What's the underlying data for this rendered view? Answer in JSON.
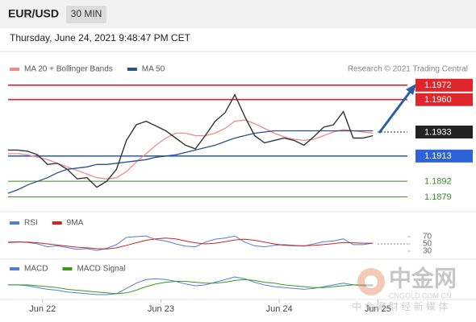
{
  "header": {
    "symbol": "EUR/USD",
    "timeframe": "30 MIN",
    "timestamp": "Thursday, June 24, 2021 9:48:47 PM CET"
  },
  "watermark": {
    "logo": "中金网",
    "url": "CNGOLD.COM.CN",
    "tagline": "中 金 网 财 经 新 媒 体"
  },
  "chart_data": [
    {
      "type": "line",
      "source": "Research © 2021 Trading Central",
      "x": [
        0,
        2,
        4,
        6,
        8,
        10,
        12,
        14,
        16,
        18,
        20,
        22,
        24,
        26,
        28,
        30,
        32,
        34,
        36,
        38,
        40,
        42,
        44,
        46,
        48,
        50,
        52,
        54,
        56,
        58,
        60,
        62,
        64,
        66,
        68,
        70,
        72,
        74
      ],
      "xlim": [
        0,
        81
      ],
      "xticks": [
        {
          "value": 7,
          "label": "Jun 22"
        },
        {
          "value": 31,
          "label": "Jun 23"
        },
        {
          "value": 55,
          "label": "Jun 24"
        },
        {
          "value": 75,
          "label": "Jun 25"
        }
      ],
      "ylim": [
        1.187,
        1.1996
      ],
      "color": "#333333",
      "values": [
        1.1918,
        1.1918,
        1.1917,
        1.1914,
        1.1906,
        1.1907,
        1.1902,
        1.1894,
        1.1895,
        1.1887,
        1.1892,
        1.1902,
        1.1926,
        1.1939,
        1.1942,
        1.1938,
        1.1934,
        1.1928,
        1.1922,
        1.1919,
        1.193,
        1.1942,
        1.1949,
        1.1964,
        1.1946,
        1.193,
        1.1924,
        1.1926,
        1.1928,
        1.1926,
        1.1922,
        1.1929,
        1.1937,
        1.1939,
        1.195,
        1.1928,
        1.1928,
        1.193
      ],
      "series": [
        {
          "name": "MA 20 + Bollinger Bands",
          "color": "#f08a8a",
          "values": [
            1.1915,
            1.1915,
            1.1914,
            1.1912,
            1.191,
            1.1907,
            1.1904,
            1.1901,
            1.1898,
            1.1895,
            1.1894,
            1.1895,
            1.19,
            1.1908,
            1.1915,
            1.1922,
            1.1928,
            1.1932,
            1.1932,
            1.193,
            1.193,
            1.1932,
            1.1936,
            1.1942,
            1.1943,
            1.194,
            1.1936,
            1.1932,
            1.1929,
            1.1927,
            1.1926,
            1.1927,
            1.193,
            1.1933,
            1.1935,
            1.1934,
            1.1933,
            1.1932
          ]
        },
        {
          "name": "MA 50",
          "color": "#2d4f8a",
          "values": [
            1.1882,
            1.1885,
            1.1889,
            1.1892,
            1.1895,
            1.1899,
            1.1902,
            1.1903,
            1.1904,
            1.1906,
            1.1906,
            1.1907,
            1.1908,
            1.1909,
            1.191,
            1.1912,
            1.1913,
            1.1914,
            1.1916,
            1.1918,
            1.192,
            1.1922,
            1.1925,
            1.1928,
            1.193,
            1.1932,
            1.1933,
            1.1934,
            1.1934,
            1.1934,
            1.1934,
            1.1934,
            1.1934,
            1.1934,
            1.1934,
            1.1934,
            1.1934,
            1.1934
          ]
        }
      ],
      "levels": [
        {
          "value": 1.1972,
          "label": "1.1972",
          "color": "#e0262a",
          "line": "solid",
          "box": true
        },
        {
          "value": 1.196,
          "label": "1.1960",
          "color": "#e0262a",
          "line": "solid",
          "box": true
        },
        {
          "value": 1.1933,
          "label": "1.1933",
          "color": "#222222",
          "line": "dotted",
          "box": true
        },
        {
          "value": 1.1913,
          "label": "1.1913",
          "color": "#2f62d6",
          "line": "solid",
          "box": true
        },
        {
          "value": 1.1892,
          "label": "1.1892",
          "color": "#3a8a2a",
          "line": "solid",
          "box": false
        },
        {
          "value": 1.1879,
          "label": "1.1879",
          "color": "#3a8a2a",
          "line": "solid",
          "box": false
        }
      ]
    },
    {
      "type": "line",
      "ylim": [
        20,
        80
      ],
      "yticks": [
        30,
        50,
        70
      ],
      "series": [
        {
          "name": "RSI",
          "color": "#4f7fd6",
          "values": [
            55,
            56,
            54,
            50,
            42,
            45,
            40,
            35,
            37,
            32,
            38,
            48,
            68,
            70,
            72,
            62,
            58,
            50,
            44,
            42,
            55,
            63,
            66,
            72,
            55,
            45,
            42,
            46,
            48,
            46,
            44,
            50,
            56,
            58,
            64,
            48,
            48,
            52
          ]
        },
        {
          "name": "9MA",
          "color": "#d42020",
          "values": [
            54,
            55,
            55,
            53,
            50,
            47,
            44,
            41,
            39,
            37,
            36,
            39,
            46,
            53,
            60,
            64,
            66,
            64,
            58,
            53,
            50,
            52,
            56,
            61,
            63,
            60,
            55,
            50,
            46,
            45,
            45,
            46,
            48,
            51,
            54,
            53,
            52,
            52
          ]
        }
      ]
    },
    {
      "type": "line",
      "series": [
        {
          "name": "MACD",
          "color": "#4f7fd6",
          "values": [
            0.0002,
            0.0002,
            0.0001,
            -0.0001,
            -0.0003,
            -0.0004,
            -0.0006,
            -0.0007,
            -0.0008,
            -0.0009,
            -0.0009,
            -0.0008,
            -0.0002,
            0.0004,
            0.0008,
            0.0009,
            0.0008,
            0.0006,
            0.0003,
            0.0001,
            0.0002,
            0.0005,
            0.0008,
            0.0011,
            0.0009,
            0.0005,
            0.0002,
            0,
            -0.0001,
            -0.0002,
            -0.0003,
            -0.0002,
            0,
            0.0002,
            0.0004,
            0.0002,
            0.0001,
            0.0001
          ]
        },
        {
          "name": "MACD Signal",
          "color": "#3a9a1e",
          "values": [
            0.0002,
            0.0002,
            0.0002,
            0.0001,
            0,
            -0.0001,
            -0.0003,
            -0.0004,
            -0.0005,
            -0.0006,
            -0.0007,
            -0.0008,
            -0.0007,
            -0.0004,
            0,
            0.0003,
            0.0005,
            0.0006,
            0.0006,
            0.0005,
            0.0004,
            0.0004,
            0.0005,
            0.0007,
            0.0008,
            0.0007,
            0.0005,
            0.0004,
            0.0002,
            0.0001,
            0,
            -0.0001,
            -0.0001,
            0,
            0.0001,
            0.0002,
            0.0002,
            0.0002
          ]
        }
      ]
    }
  ]
}
